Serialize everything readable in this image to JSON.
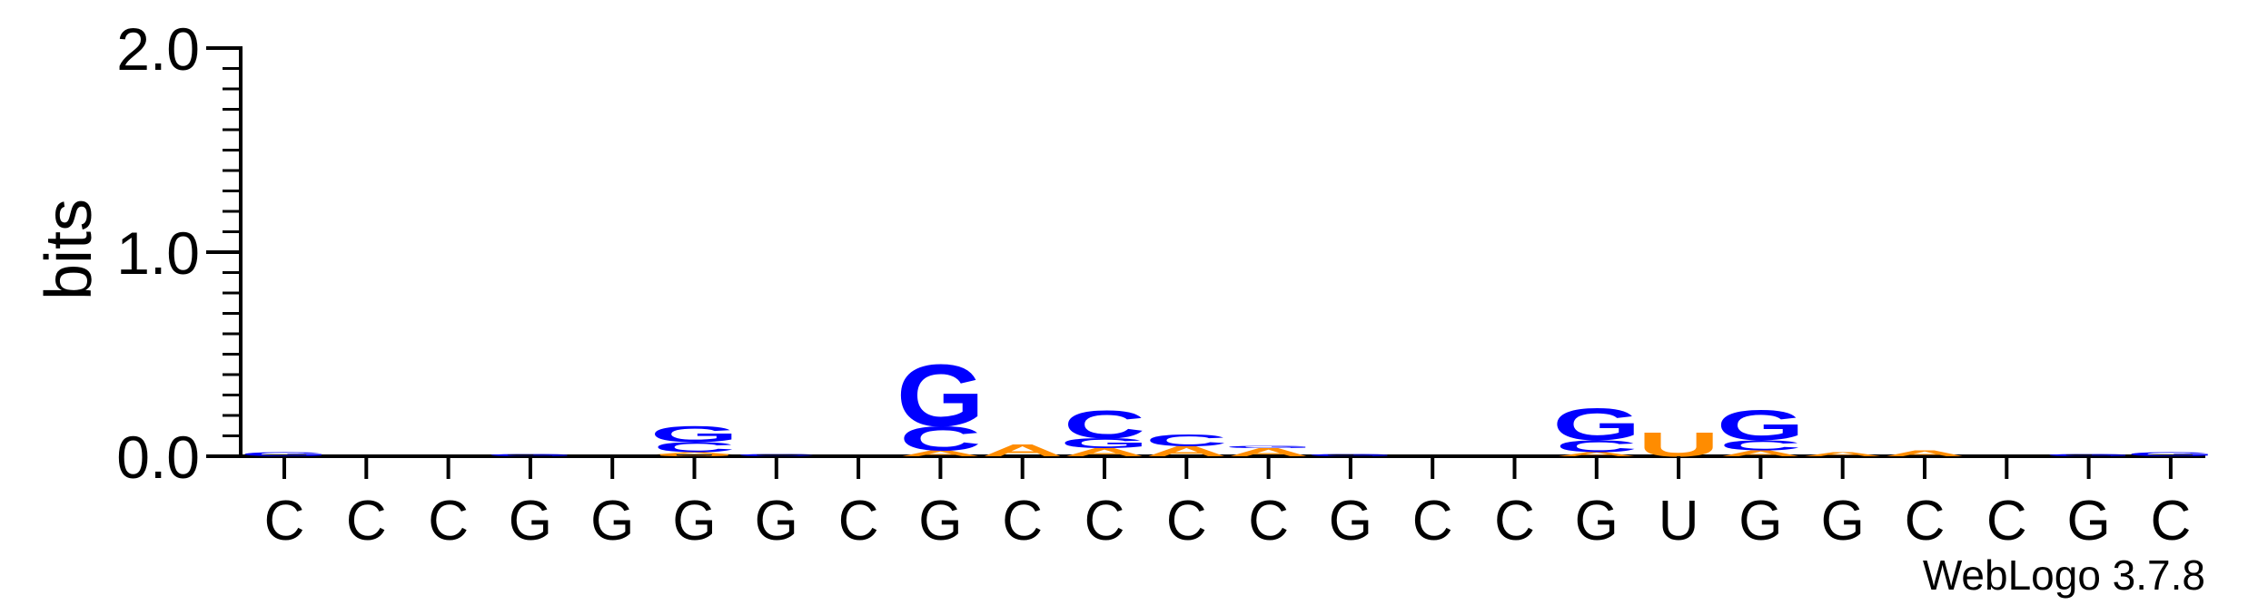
{
  "chart_data": {
    "type": "sequence-logo",
    "ylabel": "bits",
    "ylim": [
      0,
      2.0
    ],
    "yticks": [
      "0.0",
      "1.0",
      "2.0"
    ],
    "xlabel": "",
    "grid": false,
    "credit": "WebLogo 3.7.8",
    "colors": {
      "G": "#0000ff",
      "C": "#0000ff",
      "A": "#ff8c00",
      "U": "#ff8c00"
    },
    "positions": [
      {
        "label": "C",
        "stack": [
          {
            "letter": "G",
            "bits": 0.02
          }
        ]
      },
      {
        "label": "C",
        "stack": []
      },
      {
        "label": "C",
        "stack": []
      },
      {
        "label": "G",
        "stack": [
          {
            "letter": "G",
            "bits": 0.01
          }
        ]
      },
      {
        "label": "G",
        "stack": []
      },
      {
        "label": "G",
        "stack": [
          {
            "letter": "U",
            "bits": 0.01
          },
          {
            "letter": "A",
            "bits": 0.01
          },
          {
            "letter": "C",
            "bits": 0.05
          },
          {
            "letter": "G",
            "bits": 0.08
          }
        ]
      },
      {
        "label": "G",
        "stack": [
          {
            "letter": "C",
            "bits": 0.01
          }
        ]
      },
      {
        "label": "C",
        "stack": []
      },
      {
        "label": "G",
        "stack": [
          {
            "letter": "A",
            "bits": 0.03
          },
          {
            "letter": "C",
            "bits": 0.12
          },
          {
            "letter": "G",
            "bits": 0.31
          }
        ]
      },
      {
        "label": "C",
        "stack": [
          {
            "letter": "A",
            "bits": 0.06
          }
        ]
      },
      {
        "label": "C",
        "stack": [
          {
            "letter": "A",
            "bits": 0.04
          },
          {
            "letter": "G",
            "bits": 0.05
          },
          {
            "letter": "C",
            "bits": 0.14
          }
        ]
      },
      {
        "label": "C",
        "stack": [
          {
            "letter": "A",
            "bits": 0.05
          },
          {
            "letter": "C",
            "bits": 0.06
          }
        ]
      },
      {
        "label": "C",
        "stack": [
          {
            "letter": "A",
            "bits": 0.04
          },
          {
            "letter": "G",
            "bits": 0.01
          }
        ]
      },
      {
        "label": "G",
        "stack": [
          {
            "letter": "G",
            "bits": 0.01
          }
        ]
      },
      {
        "label": "C",
        "stack": []
      },
      {
        "label": "C",
        "stack": []
      },
      {
        "label": "G",
        "stack": [
          {
            "letter": "A",
            "bits": 0.02
          },
          {
            "letter": "C",
            "bits": 0.06
          },
          {
            "letter": "G",
            "bits": 0.16
          }
        ]
      },
      {
        "label": "U",
        "stack": [
          {
            "letter": "U",
            "bits": 0.12
          }
        ]
      },
      {
        "label": "G",
        "stack": [
          {
            "letter": "A",
            "bits": 0.03
          },
          {
            "letter": "C",
            "bits": 0.05
          },
          {
            "letter": "G",
            "bits": 0.15
          }
        ]
      },
      {
        "label": "G",
        "stack": [
          {
            "letter": "A",
            "bits": 0.02
          }
        ]
      },
      {
        "label": "C",
        "stack": [
          {
            "letter": "A",
            "bits": 0.03
          }
        ]
      },
      {
        "label": "C",
        "stack": []
      },
      {
        "label": "G",
        "stack": [
          {
            "letter": "G",
            "bits": 0.01
          }
        ]
      },
      {
        "label": "C",
        "stack": [
          {
            "letter": "G",
            "bits": 0.02
          }
        ]
      }
    ]
  }
}
